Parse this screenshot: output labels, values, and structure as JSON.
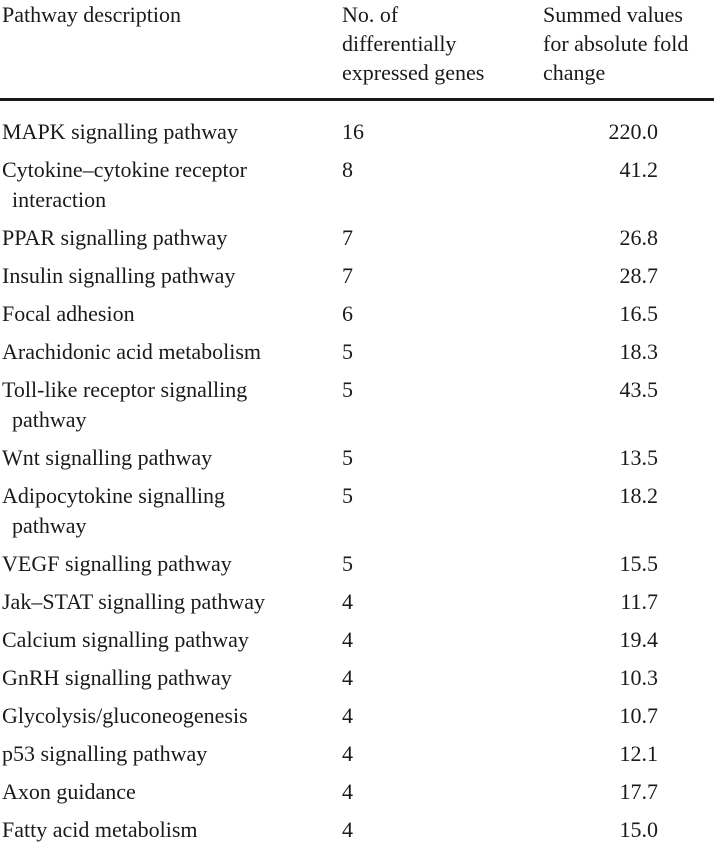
{
  "table": {
    "headers": {
      "pathway": [
        "Pathway description"
      ],
      "count": [
        "No. of",
        "differentially",
        "expressed genes"
      ],
      "fold": [
        "Summed values",
        "for absolute fold",
        "change"
      ]
    },
    "rows": [
      {
        "pathway": [
          "MAPK signalling pathway"
        ],
        "count": "16",
        "fold": "220.0"
      },
      {
        "pathway": [
          "Cytokine–cytokine receptor",
          "interaction"
        ],
        "count": "8",
        "fold": "41.2"
      },
      {
        "pathway": [
          "PPAR signalling pathway"
        ],
        "count": "7",
        "fold": "26.8"
      },
      {
        "pathway": [
          "Insulin signalling pathway"
        ],
        "count": "7",
        "fold": "28.7"
      },
      {
        "pathway": [
          "Focal adhesion"
        ],
        "count": "6",
        "fold": "16.5"
      },
      {
        "pathway": [
          "Arachidonic acid metabolism"
        ],
        "count": "5",
        "fold": "18.3"
      },
      {
        "pathway": [
          "Toll-like receptor signalling",
          "pathway"
        ],
        "count": "5",
        "fold": "43.5"
      },
      {
        "pathway": [
          "Wnt signalling pathway"
        ],
        "count": "5",
        "fold": "13.5"
      },
      {
        "pathway": [
          "Adipocytokine signalling",
          "pathway"
        ],
        "count": "5",
        "fold": "18.2"
      },
      {
        "pathway": [
          "VEGF signalling pathway"
        ],
        "count": "5",
        "fold": "15.5"
      },
      {
        "pathway": [
          "Jak–STAT signalling pathway"
        ],
        "count": "4",
        "fold": "11.7"
      },
      {
        "pathway": [
          "Calcium signalling pathway"
        ],
        "count": "4",
        "fold": "19.4"
      },
      {
        "pathway": [
          "GnRH signalling pathway"
        ],
        "count": "4",
        "fold": "10.3"
      },
      {
        "pathway": [
          "Glycolysis/gluconeogenesis"
        ],
        "count": "4",
        "fold": "10.7"
      },
      {
        "pathway": [
          "p53 signalling pathway"
        ],
        "count": "4",
        "fold": "12.1"
      },
      {
        "pathway": [
          "Axon guidance"
        ],
        "count": "4",
        "fold": "17.7"
      },
      {
        "pathway": [
          "Fatty acid metabolism"
        ],
        "count": "4",
        "fold": "15.0"
      }
    ]
  }
}
